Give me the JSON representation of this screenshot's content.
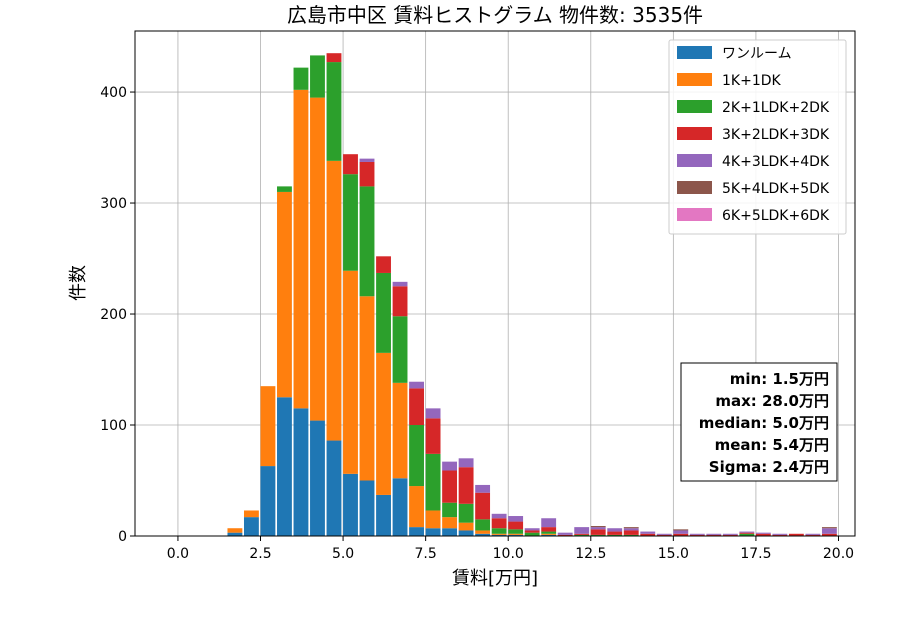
{
  "chart_data": {
    "type": "bar",
    "stacked": true,
    "title": "広島市中区 賃料ヒストグラム 物件数: 3535件",
    "xlabel": "賃料[万円]",
    "ylabel": "件数",
    "xlim": [
      -1.3,
      20.5
    ],
    "ylim": [
      0,
      455
    ],
    "xticks": [
      0.0,
      2.5,
      5.0,
      7.5,
      10.0,
      12.5,
      15.0,
      17.5,
      20.0
    ],
    "xtick_labels": [
      "0.0",
      "2.5",
      "5.0",
      "7.5",
      "10.0",
      "12.5",
      "15.0",
      "17.5",
      "20.0"
    ],
    "yticks": [
      0,
      100,
      200,
      300,
      400
    ],
    "ytick_labels": [
      "0",
      "100",
      "200",
      "300",
      "400"
    ],
    "grid": true,
    "legend_position": "top-right",
    "bin_width": 0.5,
    "bin_starts": [
      1.5,
      2.0,
      2.5,
      3.0,
      3.5,
      4.0,
      4.5,
      5.0,
      5.5,
      6.0,
      6.5,
      7.0,
      7.5,
      8.0,
      8.5,
      9.0,
      9.5,
      10.0,
      10.5,
      11.0,
      11.5,
      12.0,
      12.5,
      13.0,
      13.5,
      14.0,
      14.5,
      15.0,
      15.5,
      16.0,
      16.5,
      17.0,
      17.5,
      18.0,
      18.5,
      19.0,
      19.5
    ],
    "series": [
      {
        "name": "ワンルーム",
        "color": "#1f77b4",
        "values": [
          3,
          17,
          63,
          125,
          115,
          104,
          86,
          56,
          50,
          37,
          52,
          8,
          7,
          7,
          5,
          2,
          1,
          1,
          0,
          1,
          0,
          0,
          0,
          0,
          0,
          0,
          0,
          0,
          0,
          0,
          0,
          0,
          0,
          0,
          0,
          0,
          0
        ]
      },
      {
        "name": "1K+1DK",
        "color": "#ff7f0e",
        "values": [
          4,
          6,
          72,
          185,
          287,
          291,
          252,
          183,
          166,
          128,
          86,
          37,
          16,
          10,
          7,
          3,
          1,
          1,
          0,
          1,
          0,
          0,
          0,
          0,
          0,
          0,
          0,
          0,
          0,
          0,
          0,
          0,
          0,
          0,
          0,
          0,
          0
        ]
      },
      {
        "name": "2K+1LDK+2DK",
        "color": "#2ca02c",
        "values": [
          0,
          0,
          0,
          5,
          20,
          38,
          89,
          87,
          99,
          72,
          60,
          55,
          51,
          13,
          17,
          10,
          5,
          4,
          3,
          2,
          0,
          1,
          1,
          1,
          1,
          0,
          0,
          0,
          0,
          0,
          0,
          2,
          0,
          0,
          0,
          0,
          0
        ]
      },
      {
        "name": "3K+2LDK+3DK",
        "color": "#d62728",
        "values": [
          0,
          0,
          0,
          0,
          0,
          0,
          8,
          18,
          22,
          15,
          27,
          33,
          32,
          29,
          33,
          24,
          9,
          7,
          2,
          4,
          1,
          1,
          5,
          3,
          4,
          2,
          1,
          2,
          1,
          1,
          1,
          1,
          2,
          1,
          2,
          1,
          2
        ]
      },
      {
        "name": "4K+3LDK+4DK",
        "color": "#9467bd",
        "values": [
          0,
          0,
          0,
          0,
          0,
          0,
          0,
          0,
          3,
          0,
          4,
          6,
          9,
          8,
          8,
          7,
          4,
          5,
          2,
          8,
          2,
          6,
          2,
          3,
          2,
          2,
          1,
          3,
          1,
          1,
          1,
          1,
          1,
          1,
          0,
          1,
          5
        ]
      },
      {
        "name": "5K+4LDK+5DK",
        "color": "#8c564b",
        "values": [
          0,
          0,
          0,
          0,
          0,
          0,
          0,
          0,
          0,
          0,
          0,
          0,
          0,
          0,
          0,
          0,
          0,
          0,
          0,
          0,
          0,
          0,
          1,
          0,
          1,
          0,
          0,
          1,
          0,
          0,
          0,
          0,
          0,
          0,
          0,
          0,
          1
        ]
      },
      {
        "name": "6K+5LDK+6DK",
        "color": "#e377c2",
        "values": [
          0,
          0,
          0,
          0,
          0,
          0,
          0,
          0,
          0,
          0,
          0,
          0,
          0,
          0,
          0,
          0,
          0,
          0,
          0,
          0,
          0,
          0,
          0,
          0,
          0,
          0,
          0,
          0,
          0,
          0,
          0,
          0,
          0,
          0,
          0,
          0,
          0
        ]
      }
    ],
    "annotations": [
      "min: 1.5万円",
      "max: 28.0万円",
      "median: 5.0万円",
      "mean: 5.4万円",
      "Sigma: 2.4万円"
    ]
  }
}
